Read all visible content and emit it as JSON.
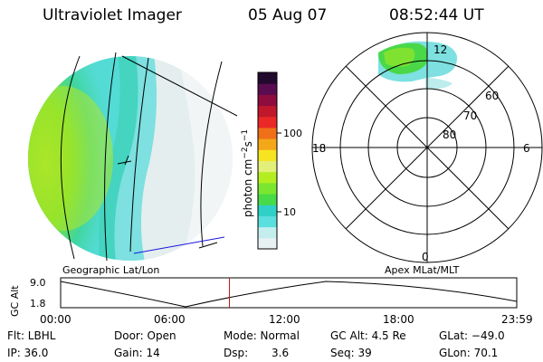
{
  "header": {
    "title": "Ultraviolet Imager",
    "date": "05 Aug 07",
    "time": "08:52:44 UT"
  },
  "colorbar": {
    "axis_label_parts": [
      "photon cm",
      "−2",
      "s",
      "−1"
    ],
    "ticks": [
      "100",
      "10"
    ],
    "colors": [
      "#e8f1f1",
      "#c4eeee",
      "#5adede",
      "#2ed0c8",
      "#48da48",
      "#7ae630",
      "#b4ee22",
      "#e2f07a",
      "#f6e420",
      "#f4a818",
      "#f07018",
      "#ea2828",
      "#c0182a",
      "#8e0c3e",
      "#5a0c50",
      "#220a2e"
    ]
  },
  "left_panel": {
    "label": "Geographic Lat/Lon"
  },
  "right_panel": {
    "label": "Apex MLat/MLT",
    "mlt_labels": {
      "top": "12",
      "left": "18",
      "right": "6",
      "bottom": "0"
    },
    "lat_labels": [
      "60",
      "70",
      "80"
    ]
  },
  "altitude_plot": {
    "ylabel": "GC Alt",
    "yticks": [
      "9.0",
      "1.8"
    ],
    "xticks": [
      "00:00",
      "06:00",
      "12:00",
      "18:00",
      "23:59"
    ],
    "current_time_fraction": 0.37
  },
  "info": {
    "flt": "Flt: LBHL",
    "ip": "IP: 36.0",
    "door": "Door: Open",
    "gain": "Gain: 14",
    "mode": "Mode: Normal",
    "dsp_label": "Dsp:",
    "dsp_value": "3.6",
    "gcalt": "GC Alt: 4.5 Re",
    "seq": "Seq: 39",
    "glat": "GLat: −49.0",
    "glon": "GLon: 70.1"
  }
}
